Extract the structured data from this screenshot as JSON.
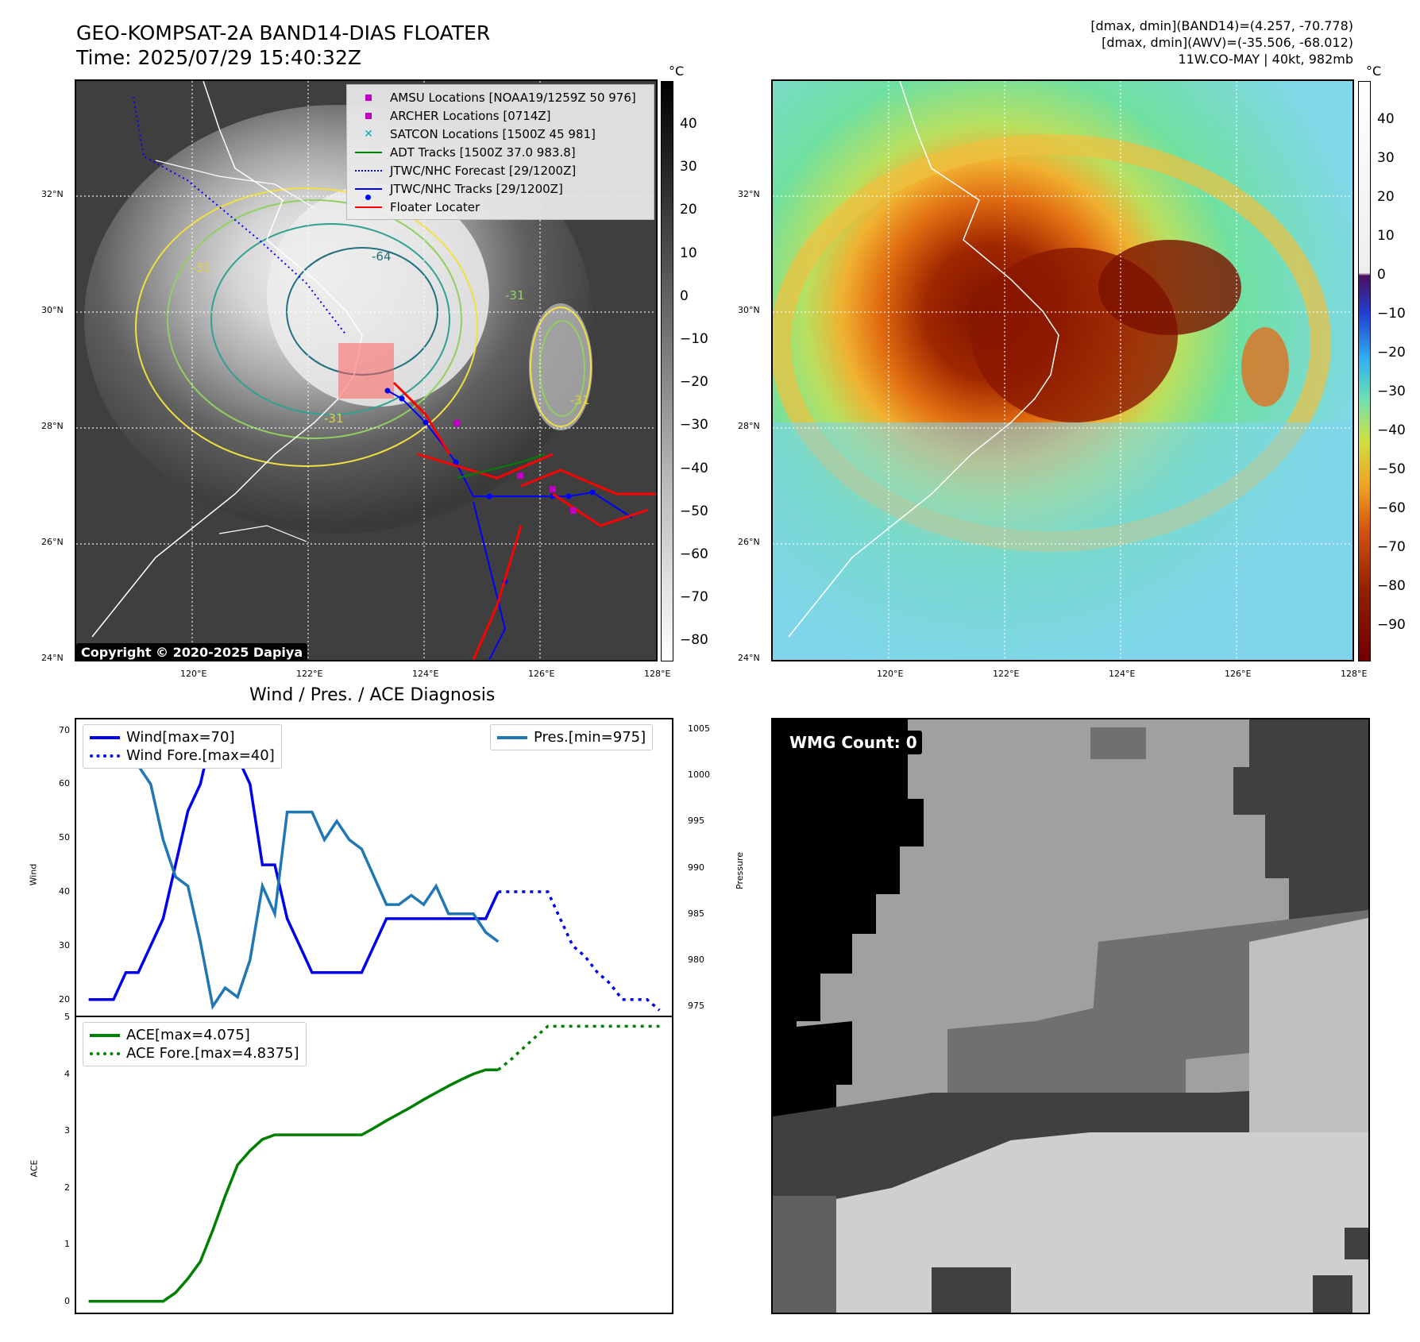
{
  "header": {
    "title_line1": "GEO-KOMPSAT-2A BAND14-DIAS FLOATER",
    "title_line2": "Time: 2025/07/29 15:40:32Z",
    "info_line1": "[dmax, dmin](BAND14)=(4.257, -70.778)",
    "info_line2": "[dmax, dmin](AWV)=(-35.506, -68.012)",
    "info_line3": "11W.CO-MAY | 40kt, 982mb"
  },
  "map": {
    "lat_labels": [
      "32°N",
      "30°N",
      "28°N",
      "26°N",
      "24°N"
    ],
    "lon_labels": [
      "120°E",
      "122°E",
      "124°E",
      "126°E",
      "128°E"
    ],
    "copyright": "Copyright © 2020-2025 Dapiya",
    "contour_labels": [
      "-31",
      "-64",
      "-31",
      "-31",
      "-31"
    ],
    "legend": [
      {
        "label": "AMSU Locations [NOAA19/1259Z 50 976]",
        "color": "#c000c0",
        "marker": "square"
      },
      {
        "label": "ARCHER Locations [0714Z]",
        "color": "#c000c0",
        "marker": "square"
      },
      {
        "label": "SATCON Locations [1500Z 45 981]",
        "color": "#00b0b0",
        "marker": "x"
      },
      {
        "label": "ADT Tracks [1500Z 37.0 983.8]",
        "color": "#008000",
        "marker": "line"
      },
      {
        "label": "JTWC/NHC Forecast [29/1200Z]",
        "color": "#0000ff",
        "marker": "dotted"
      },
      {
        "label": "JTWC/NHC Tracks [29/1200Z]",
        "color": "#0000ff",
        "marker": "line-dot"
      },
      {
        "label": "Floater Locater",
        "color": "#ff0000",
        "marker": "line"
      }
    ],
    "gray_cbar_ticks": [
      "40",
      "30",
      "20",
      "10",
      "0",
      "−10",
      "−20",
      "−30",
      "−40",
      "−50",
      "−60",
      "−70",
      "−80"
    ],
    "color_cbar_ticks": [
      "40",
      "30",
      "20",
      "10",
      "0",
      "−10",
      "−20",
      "−30",
      "−40",
      "−50",
      "−60",
      "−70",
      "−80",
      "−90"
    ],
    "cbar_unit": "°C"
  },
  "diagnosis": {
    "title": "Wind / Pres. / ACE Diagnosis",
    "wind_ylabel": "Wind",
    "pres_ylabel": "Pressure",
    "ace_ylabel": "ACE",
    "wind_ticks": [
      "70",
      "60",
      "50",
      "40",
      "30",
      "20"
    ],
    "pres_ticks": [
      "1005",
      "1000",
      "995",
      "990",
      "985",
      "980",
      "975"
    ],
    "ace_ticks": [
      "5",
      "4",
      "3",
      "2",
      "1",
      "0"
    ],
    "legend_wind": "Wind[max=70]",
    "legend_wind_fore": "Wind Fore.[max=40]",
    "legend_pres": "Pres.[min=975]",
    "legend_ace": "ACE[max=4.075]",
    "legend_ace_fore": "ACE Fore.[max=4.8375]",
    "wmg": "WMG Count: 0"
  },
  "chart_data": [
    {
      "type": "line",
      "title": "Wind / Pres. / ACE Diagnosis",
      "ylabel": "Wind",
      "ylim": [
        17,
        72
      ],
      "x": [
        0,
        1,
        2,
        3,
        4,
        5,
        6,
        7,
        8,
        9,
        10,
        11,
        12,
        13,
        14,
        15,
        16,
        17,
        18,
        19,
        20,
        21,
        22,
        23,
        24,
        25,
        26,
        27,
        28,
        29,
        30,
        31,
        32,
        33
      ],
      "series": [
        {
          "name": "Wind[max=70]",
          "color": "#0000ee",
          "style": "solid",
          "x": [
            0,
            1,
            2,
            3,
            4,
            5,
            6,
            7,
            8,
            9,
            10,
            11,
            12,
            13,
            14,
            15,
            16,
            17,
            18,
            19,
            20,
            21,
            22,
            23,
            24,
            25,
            26,
            27,
            28,
            29,
            30,
            31,
            32,
            33
          ],
          "values": [
            20,
            20,
            20,
            25,
            25,
            30,
            35,
            45,
            55,
            60,
            70,
            65,
            65,
            60,
            45,
            45,
            35,
            30,
            25,
            25,
            25,
            25,
            25,
            30,
            35,
            35,
            35,
            35,
            35,
            35,
            35,
            35,
            35,
            40
          ]
        },
        {
          "name": "Wind Fore.[max=40]",
          "color": "#0000ee",
          "style": "dotted",
          "x": [
            33,
            34,
            35,
            36,
            37,
            38,
            39,
            40,
            41,
            42,
            43,
            44,
            45,
            46
          ],
          "values": [
            40,
            40,
            40,
            40,
            40,
            35,
            30,
            28,
            25,
            23,
            20,
            20,
            20,
            18
          ]
        }
      ]
    },
    {
      "type": "line",
      "ylabel": "Pressure",
      "ylim": [
        974,
        1006
      ],
      "series": [
        {
          "name": "Pres.[min=975]",
          "color": "#1f77b4",
          "style": "solid",
          "x": [
            0,
            1,
            2,
            3,
            4,
            5,
            6,
            7,
            8,
            9,
            10,
            11,
            12,
            13,
            14,
            15,
            16,
            17,
            18,
            19,
            20,
            21,
            22,
            23,
            24,
            25,
            26,
            27,
            28,
            29,
            30,
            31,
            32,
            33
          ],
          "values": [
            1004,
            1004,
            1004,
            1003,
            1001,
            999,
            993,
            989,
            988,
            982,
            975,
            977,
            976,
            980,
            988,
            985,
            996,
            996,
            996,
            993,
            995,
            993,
            992,
            989,
            986,
            986,
            987,
            986,
            988,
            985,
            985,
            985,
            983,
            982
          ]
        }
      ]
    },
    {
      "type": "line",
      "ylabel": "ACE",
      "ylim": [
        -0.2,
        5
      ],
      "series": [
        {
          "name": "ACE[max=4.075]",
          "color": "#008000",
          "style": "solid",
          "x": [
            0,
            1,
            2,
            3,
            4,
            5,
            6,
            7,
            8,
            9,
            10,
            11,
            12,
            13,
            14,
            15,
            16,
            17,
            18,
            19,
            20,
            21,
            22,
            23,
            24,
            25,
            26,
            27,
            28,
            29,
            30,
            31,
            32,
            33
          ],
          "values": [
            0,
            0,
            0,
            0,
            0,
            0,
            0,
            0.15,
            0.4,
            0.7,
            1.25,
            1.85,
            2.4,
            2.65,
            2.85,
            2.93,
            2.93,
            2.93,
            2.93,
            2.93,
            2.93,
            2.93,
            2.93,
            3.05,
            3.18,
            3.3,
            3.42,
            3.55,
            3.67,
            3.79,
            3.9,
            4.0,
            4.075,
            4.075
          ]
        },
        {
          "name": "ACE Fore.[max=4.8375]",
          "color": "#008000",
          "style": "dotted",
          "x": [
            33,
            34,
            35,
            36,
            37,
            38,
            39,
            40,
            41,
            42,
            43,
            44,
            45,
            46
          ],
          "values": [
            4.075,
            4.25,
            4.45,
            4.65,
            4.84,
            4.84,
            4.84,
            4.84,
            4.84,
            4.84,
            4.84,
            4.84,
            4.84,
            4.84
          ]
        }
      ]
    }
  ]
}
